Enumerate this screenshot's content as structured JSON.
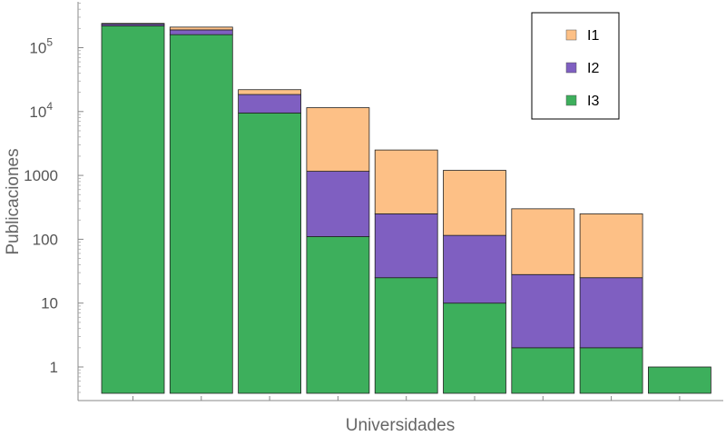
{
  "chart_data": {
    "type": "bar",
    "stacked": true,
    "yscale": "log",
    "xlabel": "Universidades",
    "ylabel": "Publicaciones",
    "ylim": [
      0.4,
      500000
    ],
    "y_ticks": [
      {
        "value": 1,
        "label": "1"
      },
      {
        "value": 10,
        "label": "10"
      },
      {
        "value": 100,
        "label": "100"
      },
      {
        "value": 1000,
        "label": "1000"
      },
      {
        "value": 10000,
        "label": "10",
        "exp": "4"
      },
      {
        "value": 100000,
        "label": "10",
        "exp": "5"
      }
    ],
    "categories": [
      "",
      "",
      "",
      "",
      "",
      "",
      "",
      "",
      ""
    ],
    "series": [
      {
        "name": "I3",
        "color": "#3daf5c",
        "values": [
          220000,
          160000,
          9500,
          110,
          25,
          10,
          2,
          2,
          1
        ]
      },
      {
        "name": "I2",
        "color": "#7f5fc1",
        "values": [
          15000,
          30000,
          9000,
          1050,
          225,
          105,
          26,
          23,
          0
        ]
      },
      {
        "name": "I1",
        "color": "#fdc086",
        "values": [
          5000,
          20000,
          3500,
          10340,
          2250,
          1085,
          272,
          225,
          0
        ]
      }
    ],
    "legend": {
      "placement": "top-right",
      "entries": [
        {
          "label": "I1",
          "color": "#fdc086"
        },
        {
          "label": "I2",
          "color": "#7f5fc1"
        },
        {
          "label": "I3",
          "color": "#3daf5c"
        }
      ]
    },
    "grid": false
  }
}
